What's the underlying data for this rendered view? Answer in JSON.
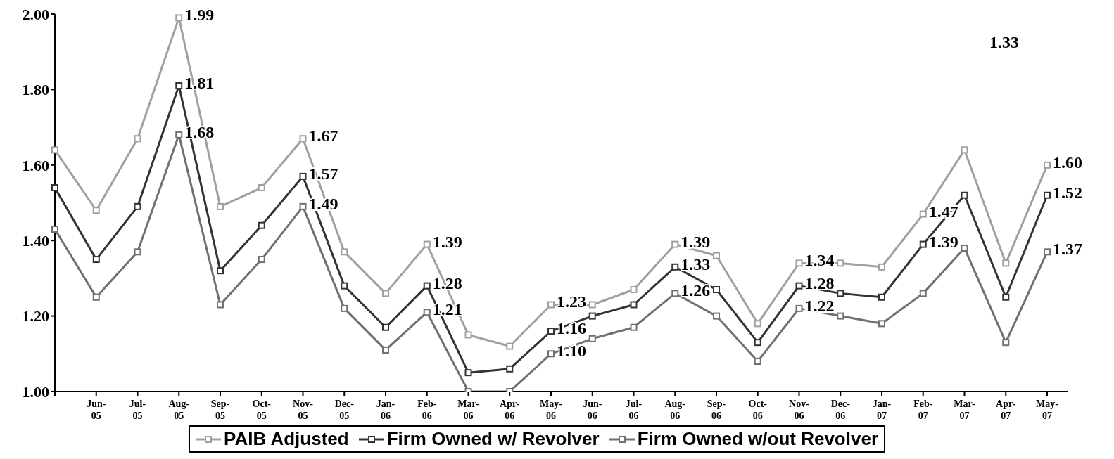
{
  "chart_data": {
    "type": "line",
    "categories": [
      null,
      "Jun-05",
      "Jul-05",
      "Aug-05",
      "Sep-05",
      "Oct-05",
      "Nov-05",
      "Dec-05",
      "Jan-06",
      "Feb-06",
      "Mar-06",
      "Apr-06",
      "May-06",
      "Jun-06",
      "Jul-06",
      "Aug-06",
      "Sep-06",
      "Oct-06",
      "Nov-06",
      "Dec-06",
      "Jan-07",
      "Feb-07",
      "Mar-07",
      "Apr-07",
      "May-07"
    ],
    "series": [
      {
        "name": "PAIB Adjusted",
        "color": "#a0a0a0",
        "values": [
          1.64,
          1.48,
          1.67,
          1.99,
          1.49,
          1.54,
          1.67,
          1.37,
          1.26,
          1.39,
          1.15,
          1.12,
          1.23,
          1.23,
          1.27,
          1.39,
          1.36,
          1.18,
          1.34,
          1.34,
          1.33,
          1.47,
          1.64,
          1.34,
          1.6
        ],
        "value_labels": [
          null,
          null,
          null,
          "1.99",
          null,
          null,
          "1.67",
          null,
          null,
          "1.39",
          null,
          null,
          "1.23",
          null,
          null,
          "1.39",
          null,
          null,
          "1.34",
          null,
          null,
          "1.47",
          null,
          null,
          "1.60"
        ]
      },
      {
        "name": "Firm Owned w/ Revolver",
        "color": "#333333",
        "values": [
          1.54,
          1.35,
          1.49,
          1.81,
          1.32,
          1.44,
          1.57,
          1.28,
          1.17,
          1.28,
          1.05,
          1.06,
          1.16,
          1.2,
          1.23,
          1.33,
          1.27,
          1.13,
          1.28,
          1.26,
          1.25,
          1.39,
          1.52,
          1.25,
          1.52
        ],
        "value_labels": [
          null,
          null,
          null,
          "1.81",
          null,
          null,
          "1.57",
          null,
          null,
          "1.28",
          null,
          null,
          "1.16",
          null,
          null,
          "1.33",
          null,
          null,
          "1.28",
          null,
          null,
          "1.39",
          null,
          null,
          "1.52"
        ]
      },
      {
        "name": "Firm Owned w/out Revolver",
        "color": "#707070",
        "values": [
          1.43,
          1.25,
          1.37,
          1.68,
          1.23,
          1.35,
          1.49,
          1.22,
          1.11,
          1.21,
          1.0,
          1.0,
          1.1,
          1.14,
          1.17,
          1.26,
          1.2,
          1.08,
          1.22,
          1.2,
          1.18,
          1.26,
          1.38,
          1.13,
          1.37
        ],
        "value_labels": [
          null,
          null,
          null,
          "1.68",
          null,
          null,
          "1.49",
          null,
          null,
          "1.21",
          null,
          null,
          "1.10",
          null,
          null,
          "1.26",
          null,
          null,
          "1.22",
          null,
          null,
          null,
          null,
          null,
          "1.37"
        ]
      }
    ],
    "annotations": [
      "1.33"
    ],
    "ylim": [
      1,
      2
    ],
    "yticks": [
      {
        "value": 1,
        "label": "1.00"
      },
      {
        "value": 1.2,
        "label": "1.20"
      },
      {
        "value": 1.4,
        "label": "1.40"
      },
      {
        "value": 1.6,
        "label": "1.60"
      },
      {
        "value": 1.8,
        "label": "1.80"
      },
      {
        "value": 2,
        "label": "2.00"
      }
    ],
    "grid": false,
    "legend": "bottom",
    "marker": "square",
    "line_style": "solid"
  }
}
